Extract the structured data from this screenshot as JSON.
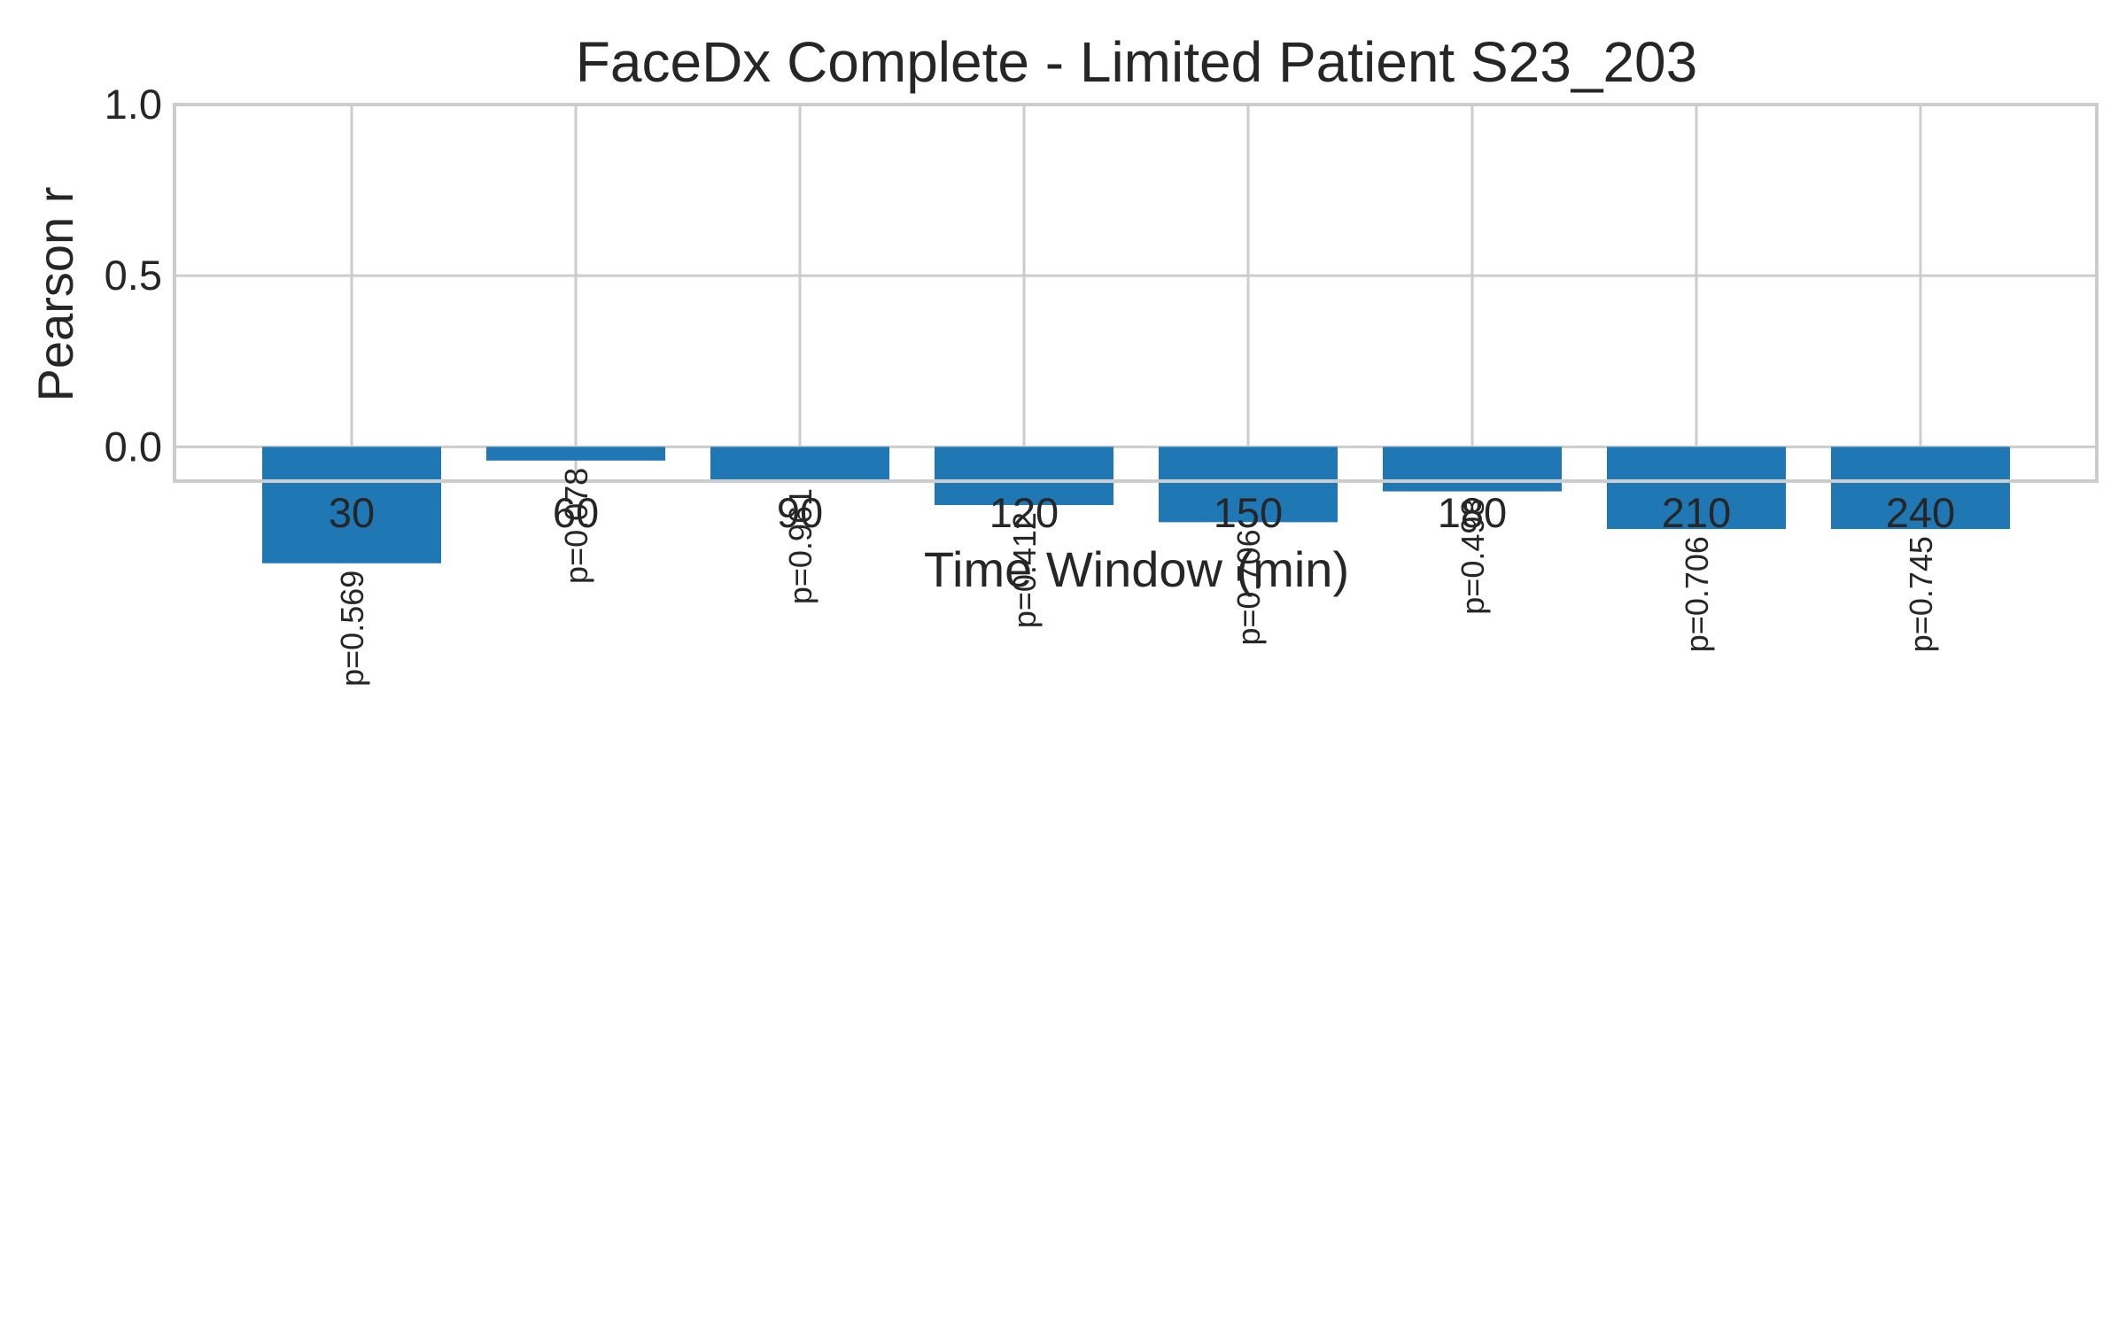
{
  "chart_data": {
    "type": "bar",
    "title": "FaceDx Complete - Limited Patient S23_203",
    "xlabel": "Time Window (min)",
    "ylabel": "Pearson r",
    "categories": [
      "30",
      "60",
      "90",
      "120",
      "150",
      "180",
      "210",
      "240"
    ],
    "values": [
      -0.34,
      -0.04,
      -0.1,
      -0.17,
      -0.22,
      -0.13,
      -0.24,
      -0.24
    ],
    "p_labels": [
      "p=0.569",
      "p=0.078",
      "p=0.961",
      "p=0.412",
      "p=0.706",
      "p=0.498",
      "p=0.706",
      "p=0.745"
    ],
    "ylim": [
      -0.1,
      1.0
    ],
    "yticks": [
      "0.0",
      "0.5",
      "1.0"
    ],
    "ytick_values": [
      0.0,
      0.5,
      1.0
    ],
    "bar_color": "#1f77b4",
    "grid": true,
    "legend": null
  }
}
